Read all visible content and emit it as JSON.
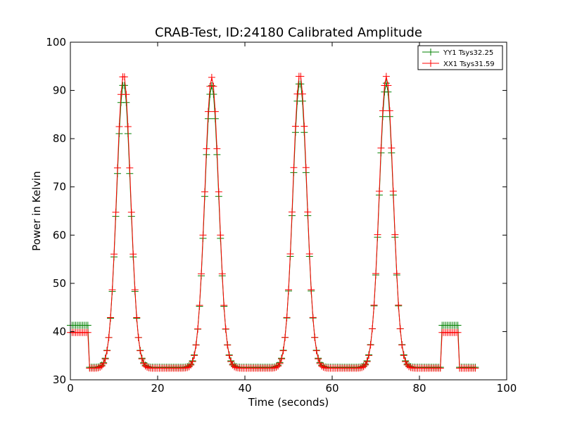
{
  "chart_data": {
    "type": "line",
    "title": "CRAB-Test, ID:24180 Calibrated Amplitude",
    "xlabel": "Time (seconds)",
    "ylabel": "Power in Kelvin",
    "xlim": [
      0,
      100
    ],
    "ylim": [
      30,
      100
    ],
    "xticks": [
      0,
      20,
      40,
      60,
      80,
      100
    ],
    "yticks": [
      30,
      40,
      50,
      60,
      70,
      80,
      90,
      100
    ],
    "grid": false,
    "legend": "top-right",
    "marker": "+",
    "series": [
      {
        "name": "YY1 Tsys32.25",
        "color": "#008000",
        "baseline": 32.6,
        "cal_level": 41.3,
        "peaks": [
          {
            "t": 12.2,
            "amp": 91.5,
            "sigma": 1.6
          },
          {
            "t": 32.4,
            "amp": 91.0,
            "sigma": 1.6
          },
          {
            "t": 52.6,
            "amp": 91.8,
            "sigma": 1.6
          },
          {
            "t": 72.4,
            "amp": 91.5,
            "sigma": 1.6
          }
        ]
      },
      {
        "name": "XX1 Tsys31.59",
        "color": "#ff0000",
        "baseline": 32.4,
        "cal_level": 39.8,
        "peaks": [
          {
            "t": 12.2,
            "amp": 93.3,
            "sigma": 1.6
          },
          {
            "t": 32.4,
            "amp": 92.7,
            "sigma": 1.6
          },
          {
            "t": 52.6,
            "amp": 93.4,
            "sigma": 1.6
          },
          {
            "t": 72.4,
            "amp": 92.9,
            "sigma": 1.6
          }
        ]
      }
    ],
    "cal_intervals": [
      [
        0,
        4.1
      ],
      [
        85.1,
        89.0
      ]
    ],
    "t_range": [
      0,
      93.0
    ],
    "sample_step": 0.4
  }
}
